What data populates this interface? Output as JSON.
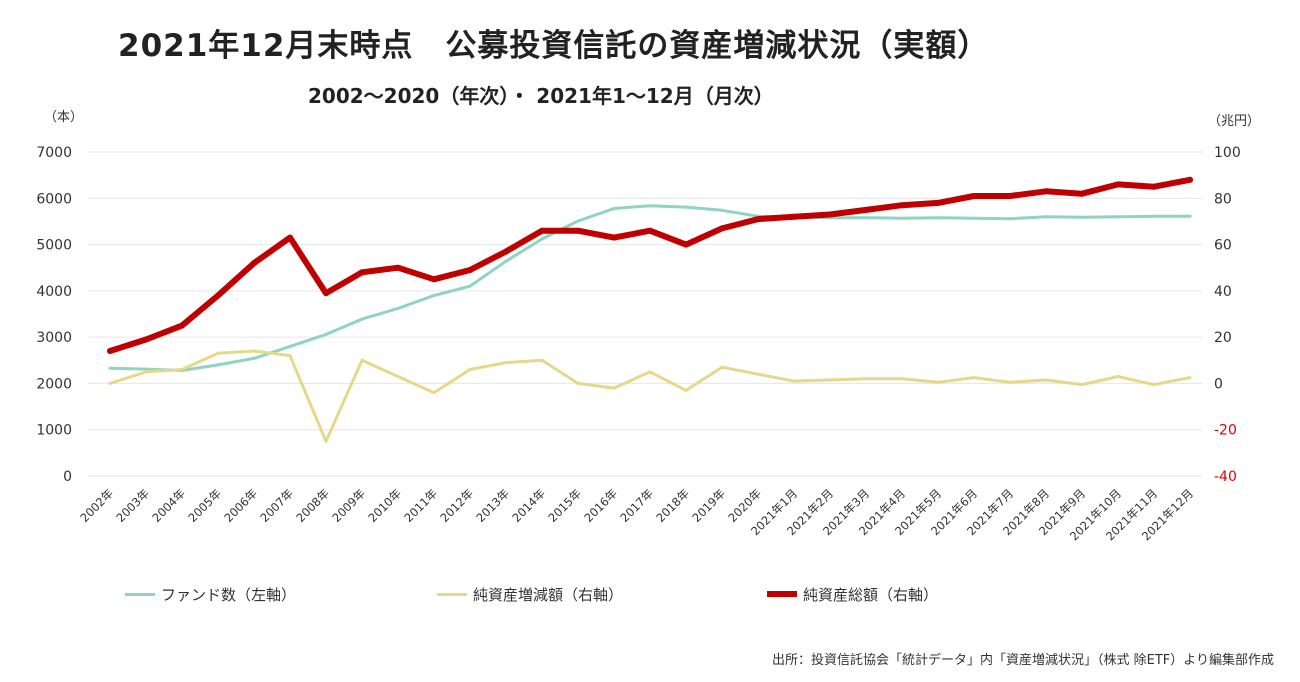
{
  "chart_data": {
    "type": "line",
    "title": "2021年12月末時点　公募投資信託の資産増減状況（実額）",
    "subtitle": "2002〜2020（年次）・ 2021年1〜12月（月次）",
    "y_left_unit": "（本）",
    "y_right_unit": "（兆円）",
    "ylim_left": [
      0,
      7000
    ],
    "ylim_right": [
      -40,
      100
    ],
    "yticks_left": [
      "7000",
      "6000",
      "5000",
      "4000",
      "3000",
      "2000",
      "1000",
      "0"
    ],
    "yticks_right": [
      "100",
      "80",
      "60",
      "40",
      "20",
      "0",
      "-20",
      "-40"
    ],
    "grid": "horizontal",
    "legend_position": "bottom",
    "categories": [
      "2002年",
      "2003年",
      "2004年",
      "2005年",
      "2006年",
      "2007年",
      "2008年",
      "2009年",
      "2010年",
      "2011年",
      "2012年",
      "2013年",
      "2014年",
      "2015年",
      "2016年",
      "2017年",
      "2018年",
      "2019年",
      "2020年",
      "2021年1月",
      "2021年2月",
      "2021年3月",
      "2021年4月",
      "2021年5月",
      "2021年6月",
      "2021年7月",
      "2021年8月",
      "2021年9月",
      "2021年10月",
      "2021年11月",
      "2021年12月"
    ],
    "series": [
      {
        "name": "ファンド数（左軸）",
        "axis": "left",
        "color": "#8fd3c1",
        "values": [
          2330,
          2310,
          2280,
          2400,
          2540,
          2800,
          3060,
          3390,
          3620,
          3900,
          4100,
          4640,
          5120,
          5510,
          5780,
          5840,
          5810,
          5740,
          5610,
          5600,
          5580,
          5580,
          5570,
          5580,
          5570,
          5560,
          5600,
          5590,
          5600,
          5610,
          5610
        ]
      },
      {
        "name": "純資産増減額（右軸）",
        "axis": "right",
        "color": "#e6d88a",
        "values": [
          0,
          5,
          6,
          13,
          14,
          12,
          -25,
          10,
          3,
          -4,
          6,
          9,
          10,
          0,
          -2,
          5,
          -3,
          7,
          4,
          1,
          1.5,
          2,
          2,
          0.5,
          2.5,
          0.5,
          1.5,
          -0.5,
          3,
          -0.5,
          2.5
        ]
      },
      {
        "name": "純資産総額（右軸）",
        "axis": "right",
        "color": "#c00000",
        "values": [
          14,
          19,
          25,
          38,
          52,
          63,
          39,
          48,
          50,
          45,
          49,
          57,
          66,
          66,
          63,
          66,
          60,
          67,
          71,
          72,
          73,
          75,
          77,
          78,
          81,
          81,
          83,
          82,
          86,
          85,
          88
        ]
      }
    ]
  },
  "source": "出所：投資信託協会「統計データ」内「資産増減状況」（株式 除ETF）より編集部作成"
}
